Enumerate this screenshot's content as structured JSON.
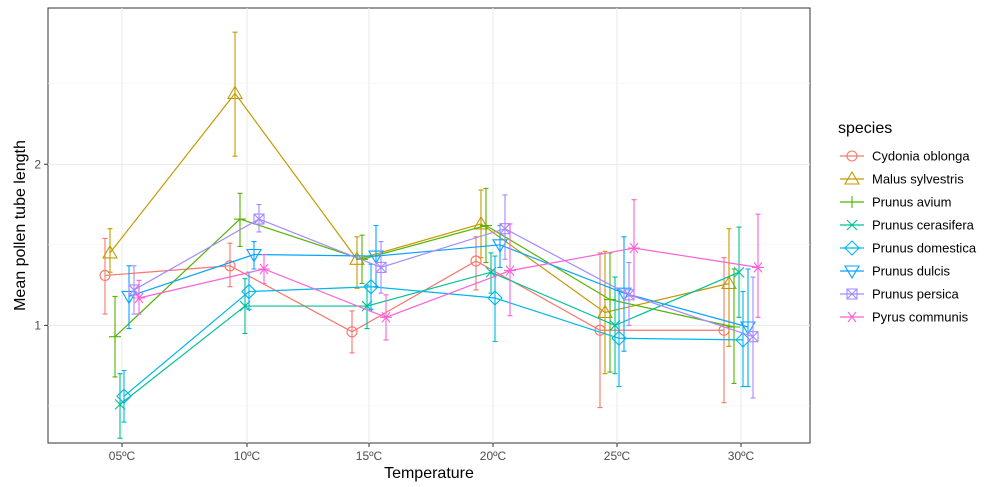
{
  "chart_data": {
    "type": "line",
    "xlabel": "Temperature",
    "ylabel": "Mean pollen tube length",
    "categories": [
      "05ºC",
      "10ºC",
      "15ºC",
      "20ºC",
      "25ºC",
      "30ºC"
    ],
    "y_ticks": [
      1,
      2
    ],
    "ylim": [
      0.27,
      2.97
    ],
    "grid": true,
    "legend": {
      "title": "species",
      "position": "right"
    },
    "series": [
      {
        "name": "Cydonia oblonga",
        "color": "#F8766D",
        "shape": "circle",
        "values": [
          1.31,
          1.37,
          0.96,
          1.4,
          0.97,
          0.97
        ],
        "lower": [
          1.07,
          1.24,
          0.83,
          1.22,
          0.49,
          0.52
        ],
        "upper": [
          1.54,
          1.51,
          1.09,
          1.55,
          1.45,
          1.42
        ]
      },
      {
        "name": "Malus sylvestris",
        "color": "#C49A00",
        "shape": "triangle-up",
        "values": [
          1.45,
          2.44,
          1.41,
          1.63,
          1.08,
          1.26
        ],
        "lower": [
          1.33,
          2.05,
          1.23,
          1.42,
          0.7,
          0.87
        ],
        "upper": [
          1.6,
          2.82,
          1.55,
          1.84,
          1.46,
          1.6
        ]
      },
      {
        "name": "Prunus avium",
        "color": "#53B400",
        "shape": "plus",
        "values": [
          0.93,
          1.66,
          1.41,
          1.62,
          1.16,
          0.99
        ],
        "lower": [
          0.68,
          1.49,
          1.26,
          1.39,
          0.71,
          0.64
        ],
        "upper": [
          1.18,
          1.82,
          1.56,
          1.85,
          1.45,
          1.35
        ]
      },
      {
        "name": "Prunus cerasifera",
        "color": "#00C094",
        "shape": "x",
        "values": [
          0.51,
          1.12,
          1.12,
          1.33,
          1.0,
          1.33
        ],
        "lower": [
          0.3,
          0.95,
          0.98,
          1.2,
          0.7,
          1.05
        ],
        "upper": [
          0.7,
          1.29,
          1.25,
          1.45,
          1.3,
          1.61
        ]
      },
      {
        "name": "Prunus domestica",
        "color": "#00B6EB",
        "shape": "diamond",
        "values": [
          0.56,
          1.21,
          1.24,
          1.17,
          0.92,
          0.91
        ],
        "lower": [
          0.4,
          1.1,
          1.1,
          0.9,
          0.62,
          0.62
        ],
        "upper": [
          0.72,
          1.33,
          1.38,
          1.43,
          1.22,
          1.21
        ]
      },
      {
        "name": "Prunus dulcis",
        "color": "#06A4FF",
        "shape": "triangle-down",
        "values": [
          1.18,
          1.44,
          1.43,
          1.5,
          1.2,
          0.99
        ],
        "lower": [
          0.98,
          1.35,
          1.24,
          1.36,
          0.84,
          0.62
        ],
        "upper": [
          1.37,
          1.52,
          1.62,
          1.62,
          1.55,
          1.35
        ]
      },
      {
        "name": "Prunus persica",
        "color": "#A58AFF",
        "shape": "boxed-x",
        "values": [
          1.22,
          1.66,
          1.36,
          1.6,
          1.19,
          0.93
        ],
        "lower": [
          1.07,
          1.58,
          1.2,
          1.41,
          1.0,
          0.55
        ],
        "upper": [
          1.37,
          1.75,
          1.52,
          1.81,
          1.39,
          1.3
        ]
      },
      {
        "name": "Pyrus communis",
        "color": "#FB61D7",
        "shape": "asterisk",
        "values": [
          1.17,
          1.35,
          1.05,
          1.34,
          1.48,
          1.36
        ],
        "lower": [
          1.07,
          1.26,
          0.91,
          1.06,
          1.18,
          1.05
        ],
        "upper": [
          1.28,
          1.44,
          1.19,
          1.63,
          1.78,
          1.69
        ]
      }
    ]
  }
}
